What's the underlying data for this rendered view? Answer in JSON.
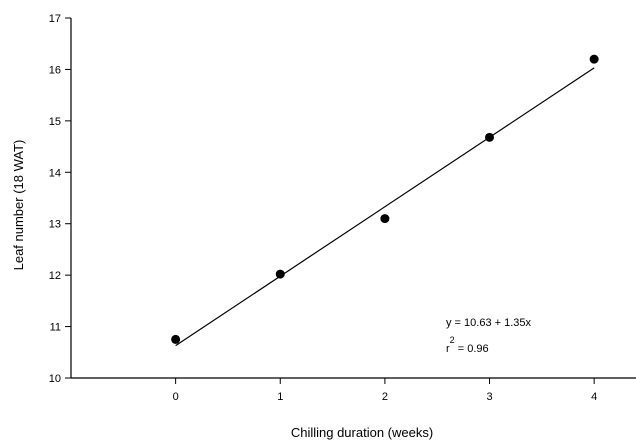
{
  "chart_data": {
    "type": "scatter",
    "title": "",
    "xlabel": "Chilling duration (weeks)",
    "ylabel": "Leaf number (18 WAT)",
    "xlim": [
      -1,
      4.4
    ],
    "ylim": [
      10,
      17
    ],
    "x_ticks": [
      0,
      1,
      2,
      3,
      4
    ],
    "y_ticks": [
      10,
      11,
      12,
      13,
      14,
      15,
      16,
      17
    ],
    "grid": false,
    "legend": "none",
    "series": [
      {
        "x": [
          0,
          1,
          2,
          3,
          4
        ],
        "values": [
          10.75,
          12.02,
          13.1,
          14.68,
          16.2
        ]
      }
    ],
    "fit": {
      "intercept": 10.63,
      "slope": 1.35,
      "x_range": [
        0,
        4
      ]
    },
    "annotations": {
      "equation": "y = 10.63 + 1.35x",
      "r2_base": "r",
      "r2_sup": "2",
      "r2_value": " = 0.96"
    },
    "colors": {
      "marker": "#000000",
      "line": "#000000",
      "axis": "#000000"
    }
  }
}
